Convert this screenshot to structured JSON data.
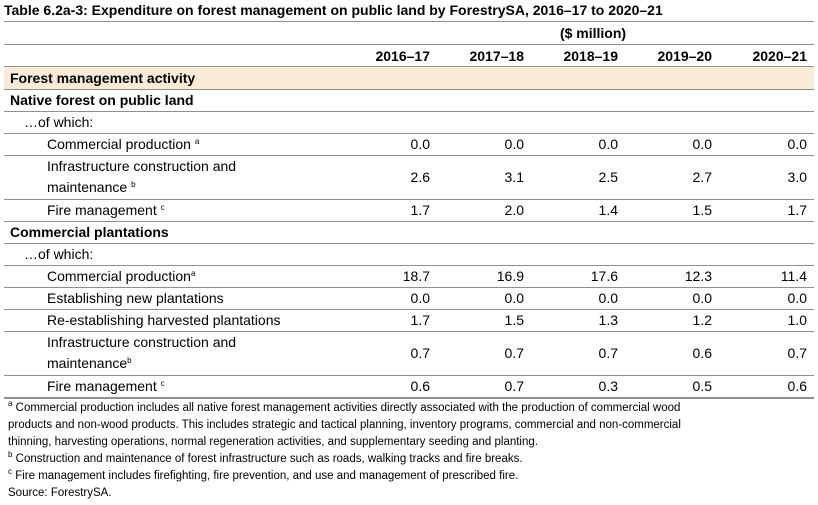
{
  "table": {
    "title": "Table 6.2a-3: Expenditure on forest management on public land by ForestrySA, 2016–17 to 2020–21",
    "unit": "($ million)",
    "years": [
      "2016–17",
      "2017–18",
      "2018–19",
      "2019–20",
      "2020–21"
    ],
    "header_section": "Forest management activity",
    "groups": [
      {
        "name": "Native forest on public land",
        "of_which": "…of which:",
        "rows": [
          {
            "label": "Commercial production",
            "sup": "a",
            "values": [
              "0.0",
              "0.0",
              "0.0",
              "0.0",
              "0.0"
            ]
          },
          {
            "label_line1": "Infrastructure construction and",
            "label_line2": "maintenance",
            "sup": "b",
            "values": [
              "2.6",
              "3.1",
              "2.5",
              "2.7",
              "3.0"
            ]
          },
          {
            "label": "Fire management",
            "sup": "c",
            "values": [
              "1.7",
              "2.0",
              "1.4",
              "1.5",
              "1.7"
            ]
          }
        ]
      },
      {
        "name": "Commercial plantations",
        "of_which": "…of which:",
        "rows": [
          {
            "label": "Commercial production",
            "sup": "a",
            "values": [
              "18.7",
              "16.9",
              "17.6",
              "12.3",
              "11.4"
            ]
          },
          {
            "label": "Establishing new plantations",
            "sup": "",
            "values": [
              "0.0",
              "0.0",
              "0.0",
              "0.0",
              "0.0"
            ]
          },
          {
            "label": "Re-establishing harvested plantations",
            "sup": "",
            "values": [
              "1.7",
              "1.5",
              "1.3",
              "1.2",
              "1.0"
            ]
          },
          {
            "label_line1": "Infrastructure construction and",
            "label_line2": "maintenance",
            "sup": "b",
            "values": [
              "0.7",
              "0.7",
              "0.7",
              "0.6",
              "0.7"
            ]
          },
          {
            "label": "Fire management",
            "sup": "c",
            "values": [
              "0.6",
              "0.7",
              "0.3",
              "0.5",
              "0.6"
            ]
          }
        ]
      }
    ]
  },
  "notes": {
    "a_mark": "a",
    "a_line1": "Commercial production includes all native forest management activities directly associated with the production of commercial wood",
    "a_line2": "products and non-wood products. This includes strategic and tactical planning, inventory programs, commercial and non-commercial",
    "a_line3": "thinning, harvesting operations, normal regeneration activities, and supplementary seeding and planting.",
    "b_mark": "b",
    "b_text": "Construction and maintenance of forest infrastructure such as roads, walking tracks and fire breaks.",
    "c_mark": "c",
    "c_text": "Fire management includes firefighting, fire prevention, and use and management of prescribed fire.",
    "source": "Source: ForestrySA."
  },
  "colors": {
    "section_band": "#faebd7",
    "rule": "#8f8f8f"
  }
}
